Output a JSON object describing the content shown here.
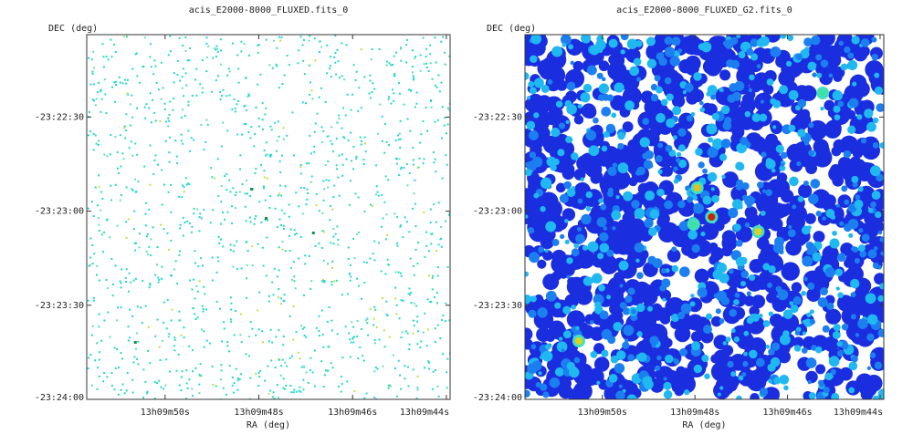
{
  "chart_data": [
    {
      "type": "image",
      "title": "acis_E2000-8000_FLUXED.fits_0",
      "xlabel": "RA (deg)",
      "ylabel": "DEC (deg)",
      "xlim": [
        197.4653,
        197.433
      ],
      "ylim": [
        -23.4,
        -23.3677
      ],
      "xticks": [
        {
          "value": 197.458333,
          "label": "13h09m50s"
        },
        {
          "value": 197.45,
          "label": "13h09m48s"
        },
        {
          "value": 197.441667,
          "label": "13h09m46s"
        },
        {
          "value": 197.433333,
          "label": "13h09m44s"
        }
      ],
      "yticks": [
        {
          "value": -23.375,
          "label": "-23:22:30"
        },
        {
          "value": -23.383333,
          "label": "-23:23:00"
        },
        {
          "value": -23.391667,
          "label": "-23:23:30"
        },
        {
          "value": -23.4,
          "label": "-23:24:00"
        }
      ]
    },
    {
      "type": "image",
      "title": "acis_E2000-8000_FLUXED_G2.fits_0",
      "xlabel": "RA (deg)",
      "ylabel": "DEC (deg)",
      "xlim": [
        197.4653,
        197.433
      ],
      "ylim": [
        -23.4,
        -23.3677
      ],
      "xticks": [
        {
          "value": 197.458333,
          "label": "13h09m50s"
        },
        {
          "value": 197.45,
          "label": "13h09m48s"
        },
        {
          "value": 197.441667,
          "label": "13h09m46s"
        },
        {
          "value": 197.433333,
          "label": "13h09m44s"
        }
      ],
      "yticks": [
        {
          "value": -23.375,
          "label": "-23:22:30"
        },
        {
          "value": -23.383333,
          "label": "-23:23:00"
        },
        {
          "value": -23.391667,
          "label": "-23:23:30"
        },
        {
          "value": -23.4,
          "label": "-23:24:00"
        }
      ]
    }
  ]
}
